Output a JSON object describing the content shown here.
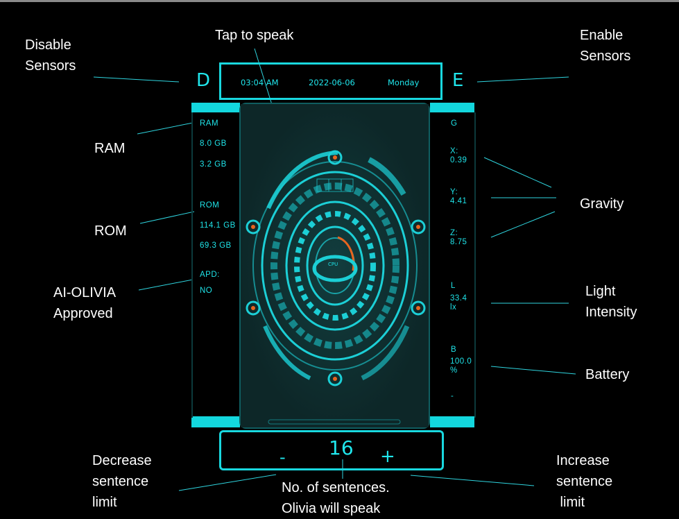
{
  "header": {
    "time": "03:04 AM",
    "date": "2022-06-06",
    "day": "Monday",
    "disable_button": "D",
    "enable_button": "E"
  },
  "left_panel": {
    "ram_label": "RAM",
    "ram_total": "8.0 GB",
    "ram_free": "3.2 GB",
    "rom_label": "ROM",
    "rom_total": "114.1 GB",
    "rom_free": "69.3 GB",
    "apd_label": "APD:",
    "apd_value": "NO"
  },
  "right_panel": {
    "gravity_label": "G",
    "x_label": "X:",
    "x_value": "0.39",
    "y_label": "Y:",
    "y_value": "4.41",
    "z_label": "Z:",
    "z_value": "8.75",
    "light_label": "L",
    "light_value": "33.4",
    "light_unit": "lx",
    "battery_label": "B",
    "battery_value": "100.0",
    "battery_unit": "%",
    "dash": "-"
  },
  "center": {
    "cpu_label": "CPU"
  },
  "controls": {
    "decrease": "-",
    "count": "16",
    "increase": "+"
  },
  "annotations": {
    "disable_sensors": [
      "Disable",
      "Sensors"
    ],
    "tap_to_speak": "Tap to  speak",
    "enable_sensors": [
      "Enable",
      "Sensors"
    ],
    "ram": "RAM",
    "rom": "ROM",
    "approved": [
      "AI-OLIVIA",
      "Approved"
    ],
    "gravity": "Gravity",
    "light": [
      "Light",
      "Intensity"
    ],
    "battery": "Battery",
    "decrease": [
      "Decrease",
      "sentence",
      "limit"
    ],
    "sentences": [
      "No. of sentences.",
      "Olivia will speak"
    ],
    "increase": [
      "Increase",
      "sentence",
      " limit"
    ]
  },
  "colors": {
    "accent": "#1fe3e8",
    "background": "#000000",
    "panel": "#102a2b",
    "annotation_text": "#ffffff"
  }
}
